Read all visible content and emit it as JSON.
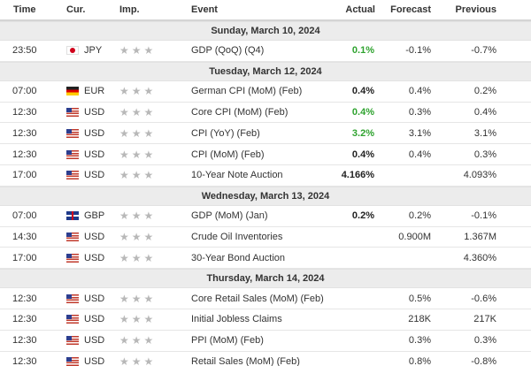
{
  "headers": {
    "time": "Time",
    "currency": "Cur.",
    "importance": "Imp.",
    "event": "Event",
    "actual": "Actual",
    "forecast": "Forecast",
    "previous": "Previous"
  },
  "colors": {
    "positive": "#2fa32f",
    "date_row_bg": "#ececec",
    "star": "#b8b8b8"
  },
  "days": [
    {
      "date": "Sunday, March 10, 2024",
      "events": [
        {
          "time": "23:50",
          "flag": "jp-flag-icon",
          "currency": "JPY",
          "event": "GDP (QoQ) (Q4)",
          "actual": "0.1%",
          "actual_style": "green",
          "forecast": "-0.1%",
          "previous": "-0.7%"
        }
      ]
    },
    {
      "date": "Tuesday, March 12, 2024",
      "events": [
        {
          "time": "07:00",
          "flag": "de-flag-icon",
          "currency": "EUR",
          "event": "German CPI (MoM) (Feb)",
          "actual": "0.4%",
          "actual_style": "bold",
          "forecast": "0.4%",
          "previous": "0.2%"
        },
        {
          "time": "12:30",
          "flag": "us-flag-icon",
          "currency": "USD",
          "event": "Core CPI (MoM) (Feb)",
          "actual": "0.4%",
          "actual_style": "green",
          "forecast": "0.3%",
          "previous": "0.4%"
        },
        {
          "time": "12:30",
          "flag": "us-flag-icon",
          "currency": "USD",
          "event": "CPI (YoY) (Feb)",
          "actual": "3.2%",
          "actual_style": "green",
          "forecast": "3.1%",
          "previous": "3.1%"
        },
        {
          "time": "12:30",
          "flag": "us-flag-icon",
          "currency": "USD",
          "event": "CPI (MoM) (Feb)",
          "actual": "0.4%",
          "actual_style": "bold",
          "forecast": "0.4%",
          "previous": "0.3%"
        },
        {
          "time": "17:00",
          "flag": "us-flag-icon",
          "currency": "USD",
          "event": "10-Year Note Auction",
          "actual": "4.166%",
          "actual_style": "bold",
          "forecast": "",
          "previous": "4.093%"
        }
      ]
    },
    {
      "date": "Wednesday, March 13, 2024",
      "events": [
        {
          "time": "07:00",
          "flag": "gb-flag-icon",
          "currency": "GBP",
          "event": "GDP (MoM) (Jan)",
          "actual": "0.2%",
          "actual_style": "bold",
          "forecast": "0.2%",
          "previous": "-0.1%"
        },
        {
          "time": "14:30",
          "flag": "us-flag-icon",
          "currency": "USD",
          "event": "Crude Oil Inventories",
          "actual": "",
          "actual_style": "bold",
          "forecast": "0.900M",
          "previous": "1.367M"
        },
        {
          "time": "17:00",
          "flag": "us-flag-icon",
          "currency": "USD",
          "event": "30-Year Bond Auction",
          "actual": "",
          "actual_style": "bold",
          "forecast": "",
          "previous": "4.360%"
        }
      ]
    },
    {
      "date": "Thursday, March 14, 2024",
      "events": [
        {
          "time": "12:30",
          "flag": "us-flag-icon",
          "currency": "USD",
          "event": "Core Retail Sales (MoM) (Feb)",
          "actual": "",
          "actual_style": "bold",
          "forecast": "0.5%",
          "previous": "-0.6%"
        },
        {
          "time": "12:30",
          "flag": "us-flag-icon",
          "currency": "USD",
          "event": "Initial Jobless Claims",
          "actual": "",
          "actual_style": "bold",
          "forecast": "218K",
          "previous": "217K"
        },
        {
          "time": "12:30",
          "flag": "us-flag-icon",
          "currency": "USD",
          "event": "PPI (MoM) (Feb)",
          "actual": "",
          "actual_style": "bold",
          "forecast": "0.3%",
          "previous": "0.3%"
        },
        {
          "time": "12:30",
          "flag": "us-flag-icon",
          "currency": "USD",
          "event": "Retail Sales (MoM) (Feb)",
          "actual": "",
          "actual_style": "bold",
          "forecast": "0.8%",
          "previous": "-0.8%"
        }
      ]
    }
  ]
}
